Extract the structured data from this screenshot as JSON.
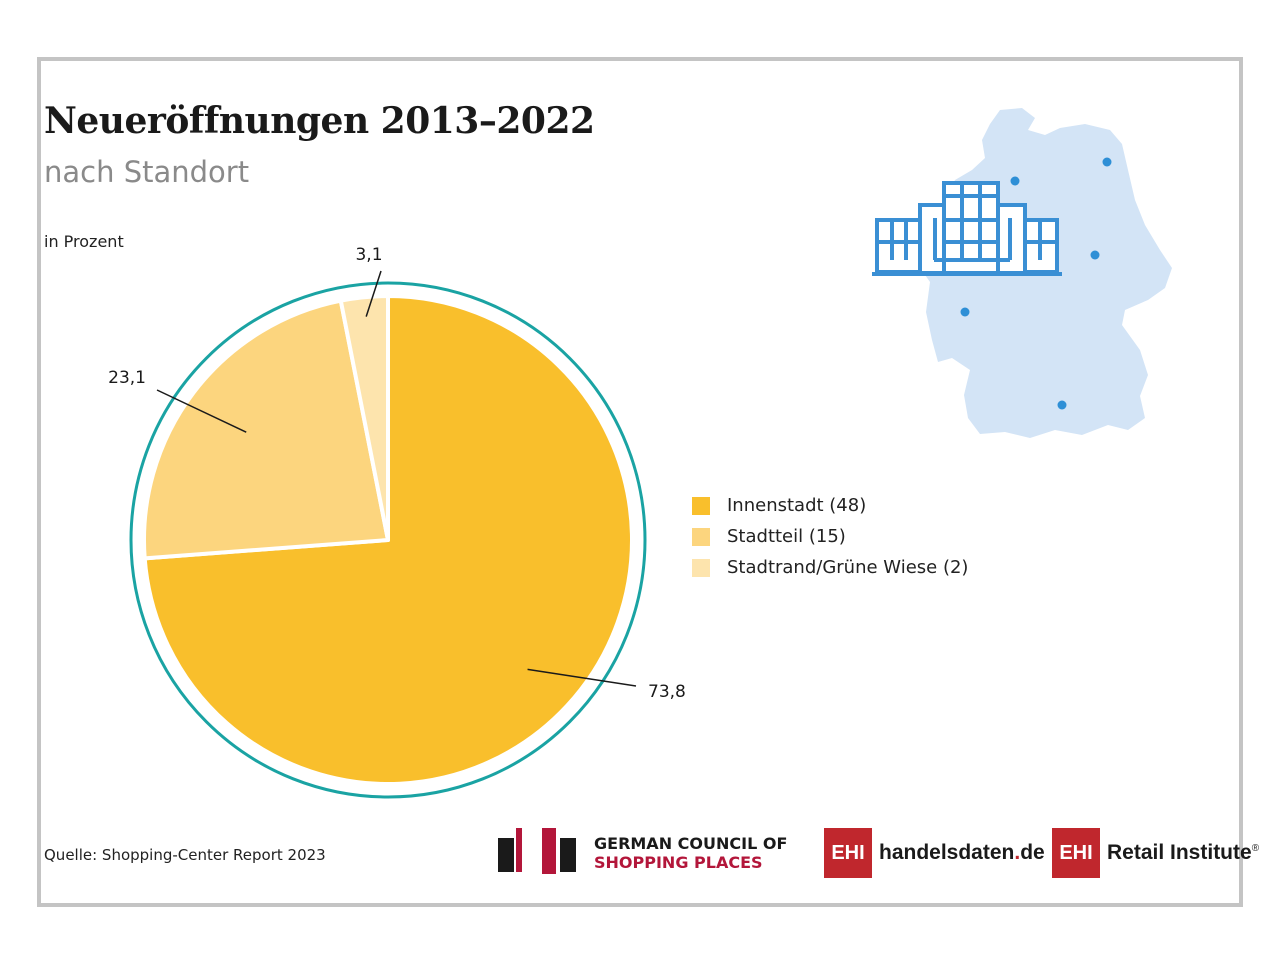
{
  "title": "Neueröffnungen 2013–2022",
  "subtitle": "nach Standort",
  "unit_label": "in Prozent",
  "source": "Quelle: Shopping-Center Report 2023",
  "chart_data": {
    "type": "pie",
    "unit": "in Prozent",
    "categories": [
      "Innenstadt (48)",
      "Stadtteil (15)",
      "Stadtrand/Grüne Wiese (2)"
    ],
    "values": [
      73.8,
      23.1,
      3.1
    ],
    "value_labels": [
      "73,8",
      "23,1",
      "3,1"
    ],
    "colors": [
      "#f9bf2c",
      "#fcd57e",
      "#fde4ad"
    ],
    "ring_color": "#1aa3a3",
    "legend_position": "right"
  },
  "legend": {
    "items": [
      {
        "label": "Innenstadt (48)",
        "color": "#f9bf2c"
      },
      {
        "label": "Stadtteil (15)",
        "color": "#fcd57e"
      },
      {
        "label": "Stadtrand/Grüne Wiese (2)",
        "color": "#fde4ad"
      }
    ]
  },
  "illustration": {
    "icon": "germany-map-shopping-center-icon",
    "map_color": "#d3e4f6",
    "building_color": "#3a8fd4",
    "dot_color": "#2e8fd6"
  },
  "logos": {
    "gcsp_line1": "GERMAN COUNCIL OF",
    "gcsp_line2": "SHOPPING PLACES",
    "ehi_box": "EHI",
    "handelsdaten_name": "handelsdaten",
    "handelsdaten_dot": ".",
    "handelsdaten_tld": "de",
    "retail_name": "Retail Institute",
    "registered": "®"
  }
}
